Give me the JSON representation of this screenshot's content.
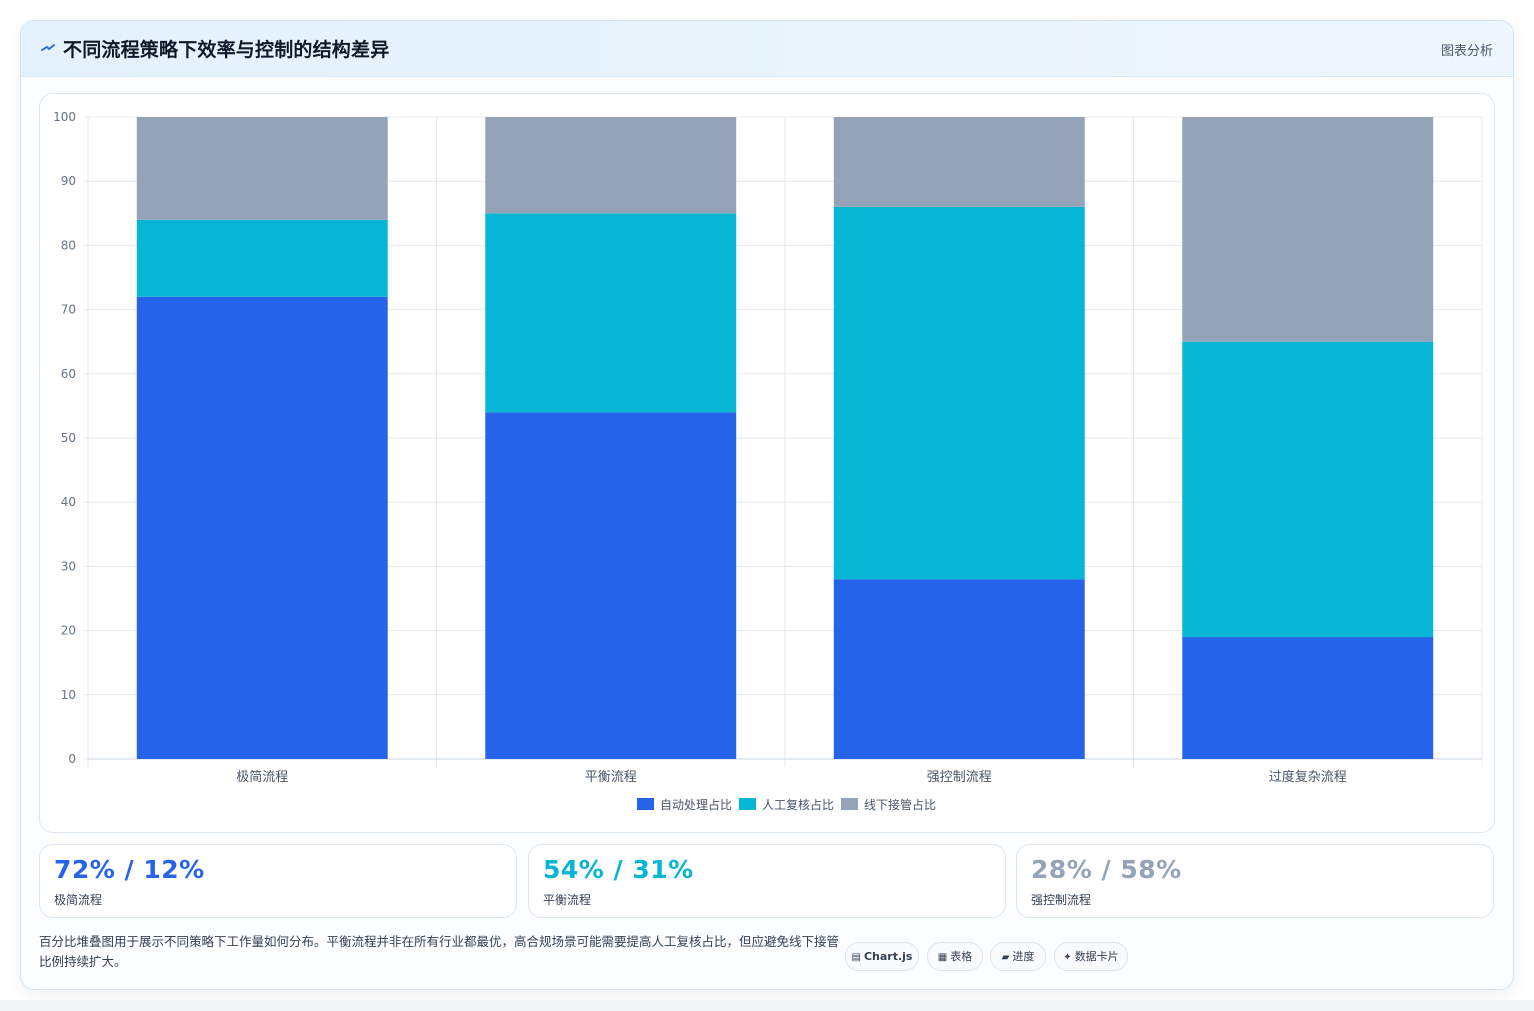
{
  "header": {
    "icon": "trend-icon",
    "title": "不同流程策略下效率与控制的结构差异",
    "action_label": "图表分析"
  },
  "chart_data": {
    "type": "bar",
    "stacked": true,
    "categories": [
      "极简流程",
      "平衡流程",
      "强控制流程",
      "过度复杂流程"
    ],
    "series": [
      {
        "name": "自动处理占比",
        "color": "#2563eb",
        "values": [
          72,
          54,
          28,
          19
        ]
      },
      {
        "name": "人工复核占比",
        "color": "#06b6d4",
        "values": [
          12,
          31,
          58,
          46
        ]
      },
      {
        "name": "线下接管占比",
        "color": "#94a3b8",
        "values": [
          16,
          15,
          14,
          35
        ]
      }
    ],
    "ylim": [
      0,
      100
    ],
    "yticks": [
      0,
      10,
      20,
      30,
      40,
      50,
      60,
      70,
      80,
      90,
      100
    ],
    "grid": true,
    "legend_position": "bottom"
  },
  "stats": [
    {
      "value": "72% / 12%",
      "label": "极简流程",
      "color": "#2563eb"
    },
    {
      "value": "54% / 31%",
      "label": "平衡流程",
      "color": "#06b6d4"
    },
    {
      "value": "28% / 58%",
      "label": "强控制流程",
      "color": "#94a3b8"
    }
  ],
  "footnote": "百分比堆叠图用于展示不同策略下工作量如何分布。平衡流程并非在所有行业都最优，高合规场景可能需要提高人工复核占比，但应避免线下接管比例持续扩大。",
  "chips": [
    {
      "icon": "▤",
      "label": "Chart.js"
    },
    {
      "icon": "▦",
      "label": "表格"
    },
    {
      "icon": "▰",
      "label": "进度"
    },
    {
      "icon": "✦",
      "label": "数据卡片"
    }
  ]
}
